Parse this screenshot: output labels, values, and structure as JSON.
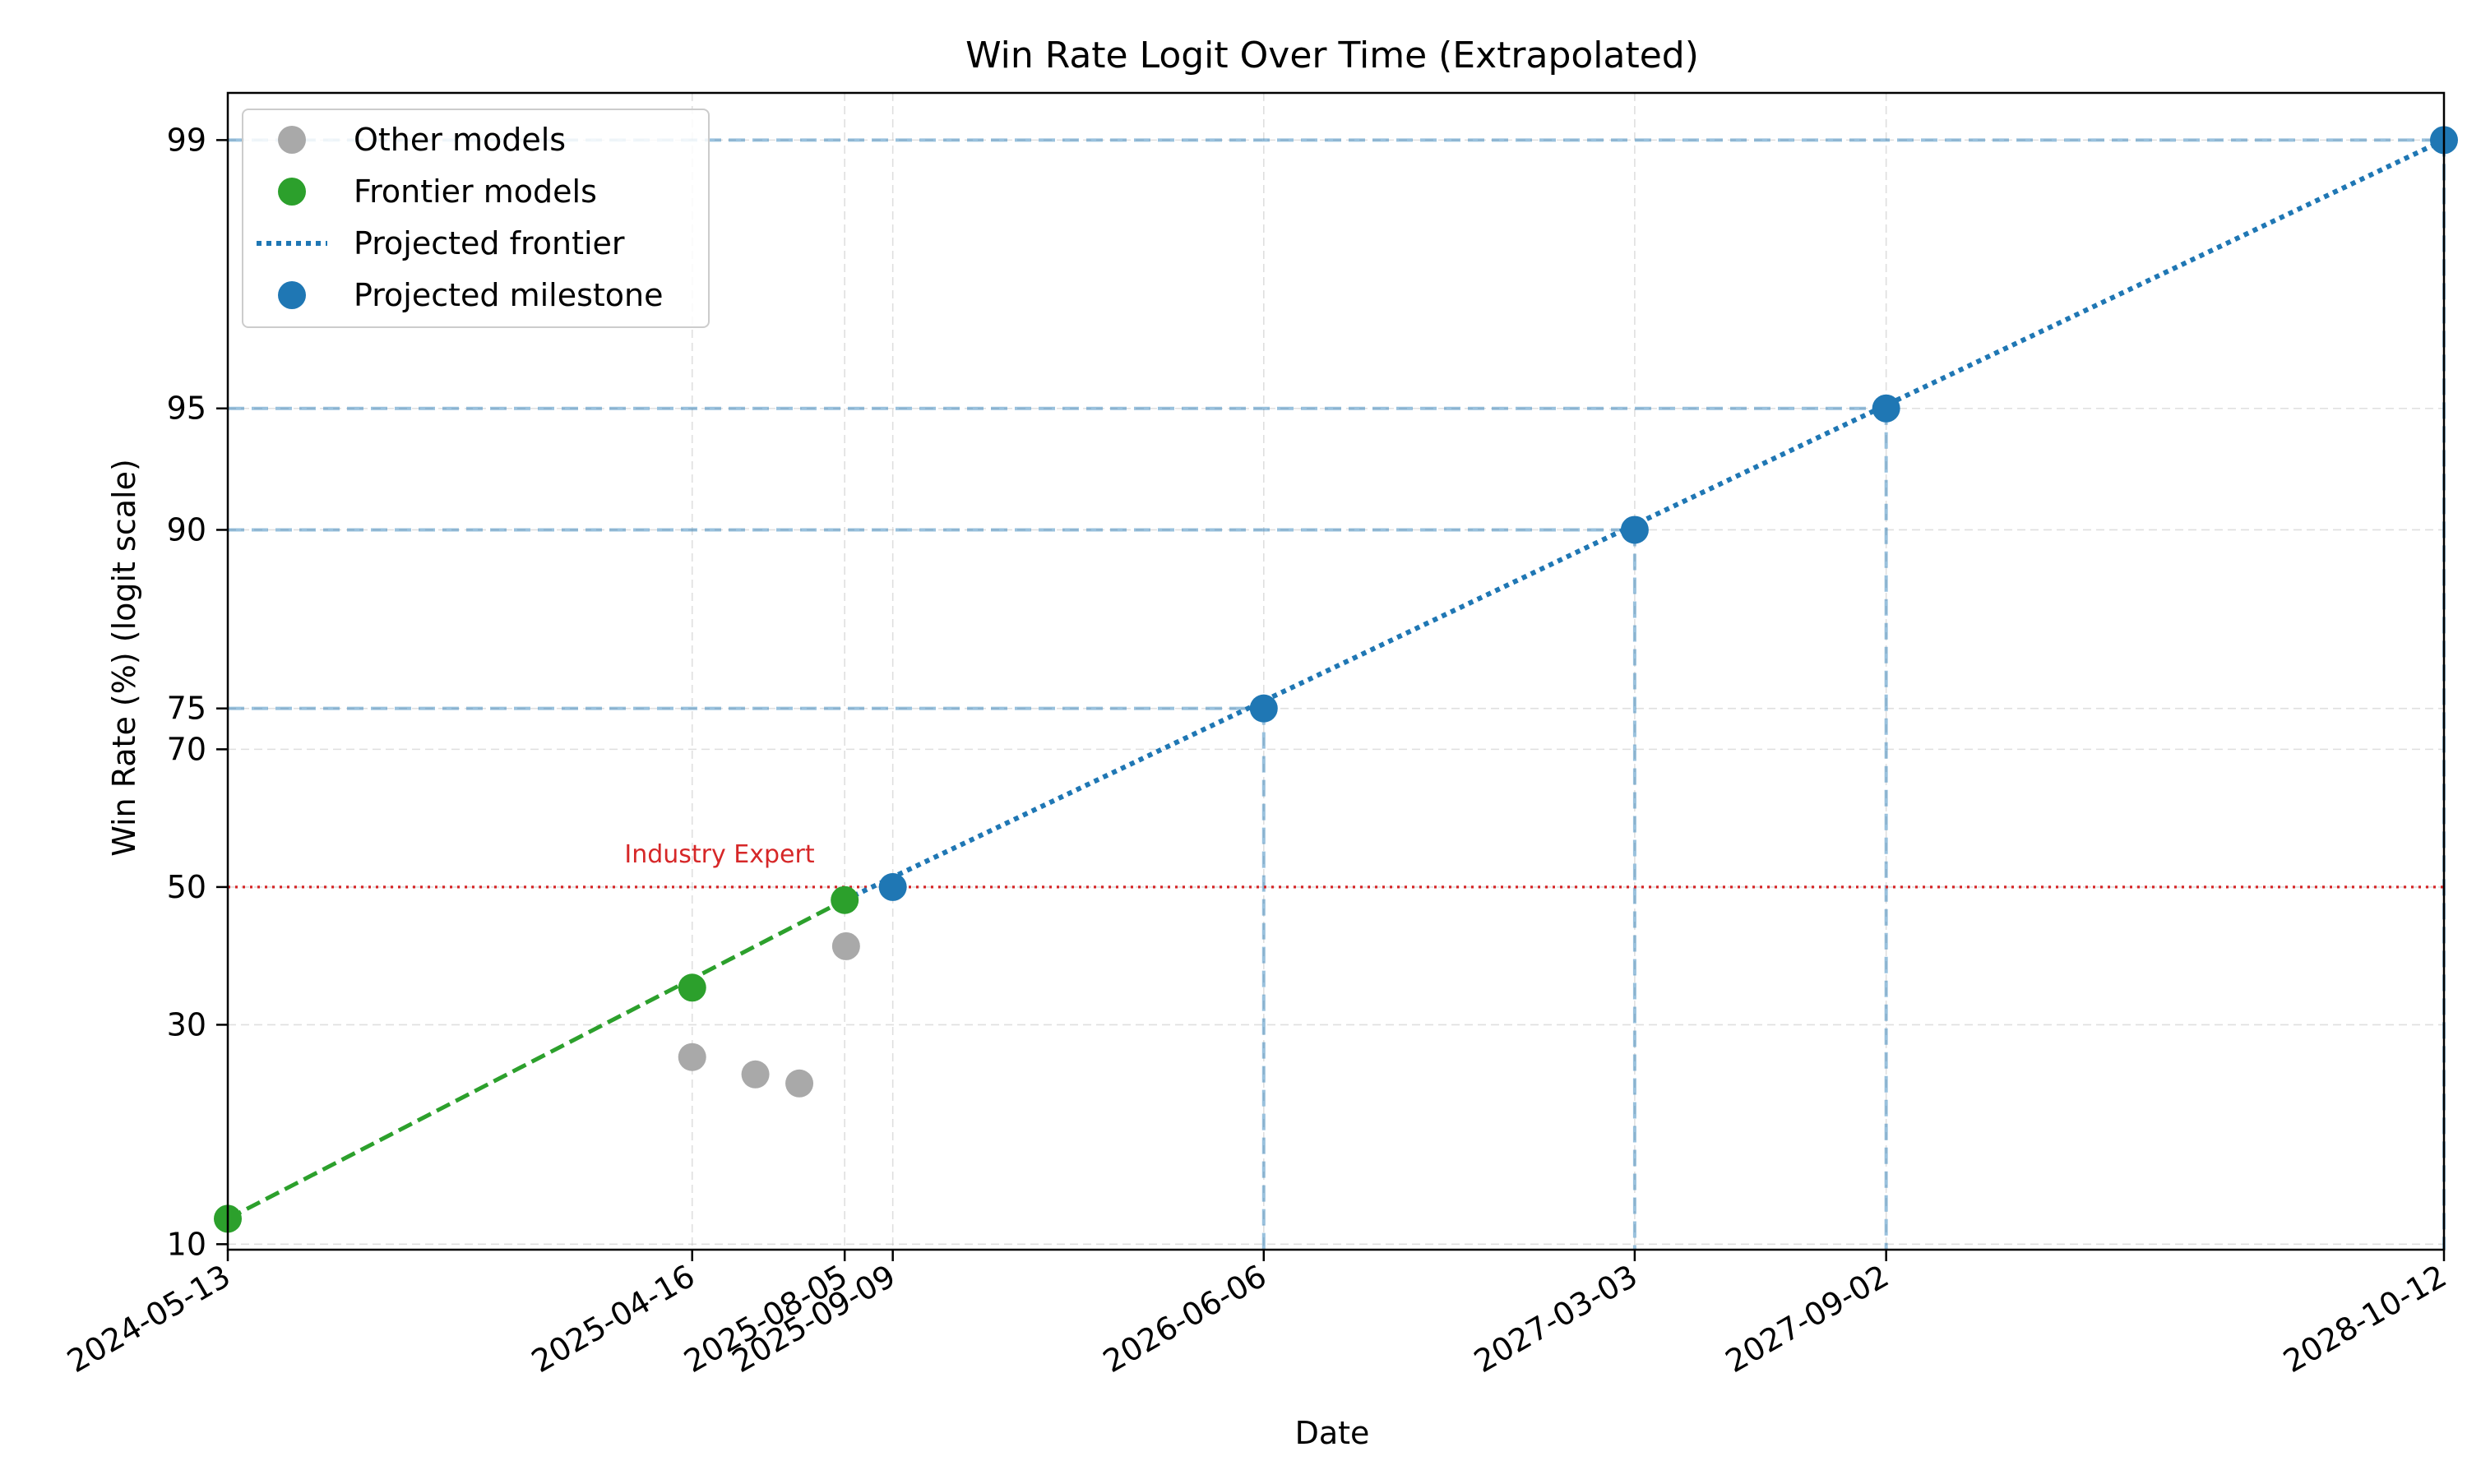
{
  "chart_data": {
    "type": "scatter",
    "title": "Win Rate Logit Over Time (Extrapolated)",
    "xlabel": "Date",
    "ylabel": "Win Rate (%) (logit scale)",
    "y_scale": "logit",
    "xlim": [
      "2024-05-13",
      "2028-10-12"
    ],
    "ylim": [
      9.7,
      99.25
    ],
    "x_ticks": [
      "2024-05-13",
      "2025-04-16",
      "2025-08-05",
      "2025-09-09",
      "2026-06-06",
      "2027-03-03",
      "2027-09-02",
      "2028-10-12"
    ],
    "y_ticks": [
      10,
      30,
      50,
      70,
      75,
      90,
      95,
      99
    ],
    "grid": true,
    "legend_position": "upper-left",
    "legend": [
      {
        "label": "Other models",
        "kind": "marker",
        "color": "#a9a9a9"
      },
      {
        "label": "Frontier models",
        "kind": "marker",
        "color": "#2ca02c"
      },
      {
        "label": "Projected frontier",
        "kind": "dotted-line",
        "color": "#1f77b4"
      },
      {
        "label": "Projected milestone",
        "kind": "marker",
        "color": "#1f77b4"
      }
    ],
    "series": [
      {
        "name": "Other models",
        "color": "#a9a9a9",
        "points": [
          [
            "2025-04-16",
            26
          ],
          [
            "2025-06-01",
            24
          ],
          [
            "2025-07-03",
            23
          ],
          [
            "2025-08-06",
            41
          ]
        ]
      },
      {
        "name": "Frontier models",
        "color": "#2ca02c",
        "points": [
          [
            "2024-05-13",
            11.5
          ],
          [
            "2025-04-16",
            35
          ],
          [
            "2025-08-05",
            48
          ]
        ]
      },
      {
        "name": "Projected frontier",
        "color": "#1f77b4",
        "points": [
          [
            "2025-08-05",
            48
          ],
          [
            "2028-10-12",
            99
          ]
        ]
      },
      {
        "name": "Projected milestone",
        "color": "#1f77b4",
        "points": [
          [
            "2025-09-09",
            50
          ],
          [
            "2026-06-06",
            75
          ],
          [
            "2027-03-03",
            90
          ],
          [
            "2027-09-02",
            95
          ],
          [
            "2028-10-12",
            99
          ]
        ]
      }
    ],
    "frontier_trend": {
      "color": "#2ca02c",
      "points": [
        [
          "2024-05-13",
          11.5
        ],
        [
          "2025-08-05",
          48
        ]
      ]
    },
    "reference_line": {
      "label": "Industry Expert",
      "y": 50,
      "color": "#d62728"
    }
  }
}
